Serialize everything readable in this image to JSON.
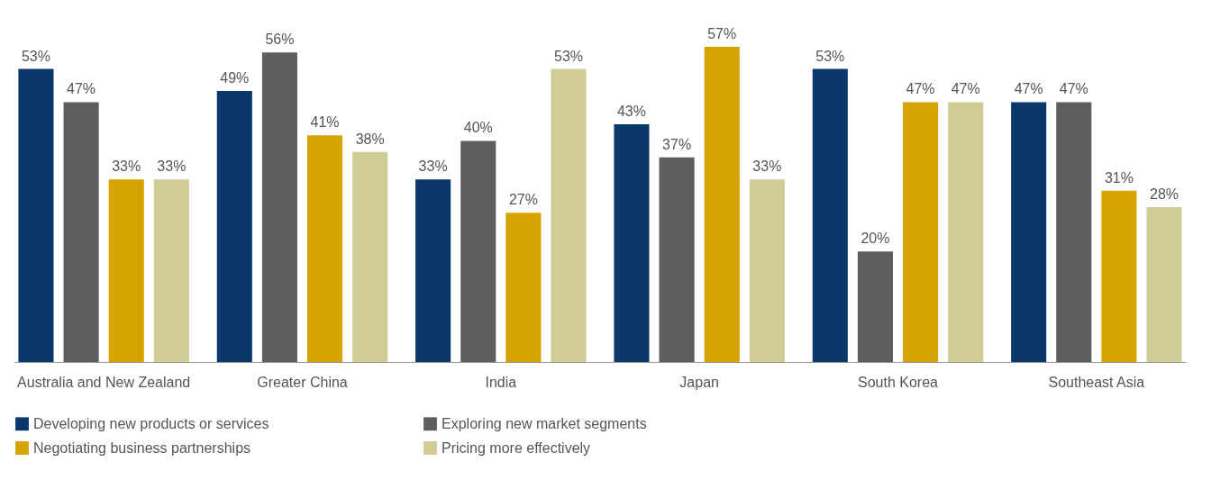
{
  "chart_data": {
    "type": "bar",
    "categories": [
      "Australia and New Zealand",
      "Greater China",
      "India",
      "Japan",
      "South Korea",
      "Southeast Asia"
    ],
    "series": [
      {
        "name": "Developing new products or services",
        "color": "#0a386b",
        "values": [
          53,
          49,
          33,
          43,
          53,
          47
        ],
        "value_labels": [
          "53%",
          "49%",
          "33%",
          "43%",
          "53%",
          "47%"
        ]
      },
      {
        "name": "Exploring new market segments",
        "color": "#5e5e5e",
        "values": [
          47,
          56,
          40,
          37,
          20,
          47
        ],
        "value_labels": [
          "47%",
          "56%",
          "40%",
          "37%",
          "20%",
          "47%"
        ]
      },
      {
        "name": "Negotiating business partnerships",
        "color": "#d6a300",
        "values": [
          33,
          41,
          27,
          57,
          47,
          31
        ],
        "value_labels": [
          "33%",
          "41%",
          "27%",
          "57%",
          "47%",
          "31%"
        ]
      },
      {
        "name": "Pricing more effectively",
        "color": "#cfcc95",
        "values": [
          33,
          38,
          53,
          33,
          47,
          28
        ],
        "value_labels": [
          "33%",
          "38%",
          "53%",
          "33%",
          "47%",
          "28%"
        ]
      }
    ],
    "legend": "bottom left",
    "tick_labels": "x"
  }
}
